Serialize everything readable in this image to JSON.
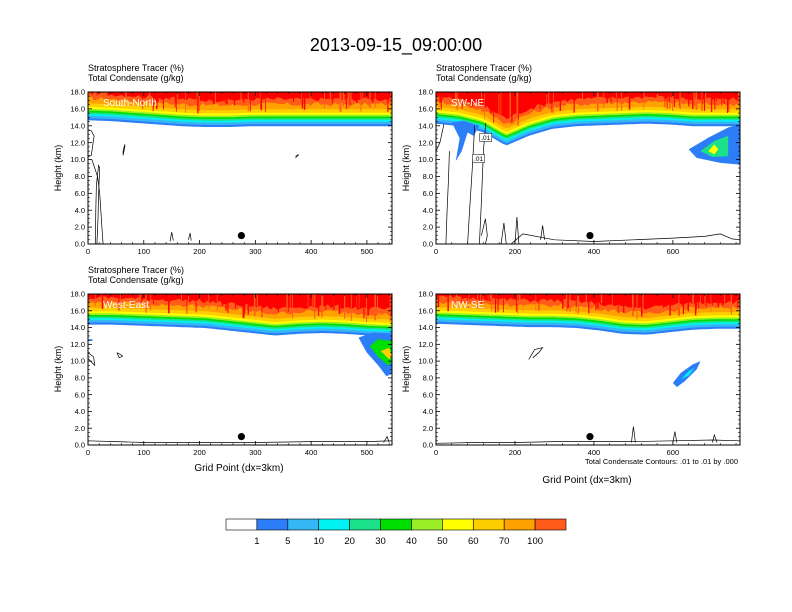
{
  "title": "2013-09-15_09:00:00",
  "colors": {
    "bg": "#ffffff",
    "axis": "#000000",
    "levels": [
      "#ffffff",
      "#2b7ef7",
      "#35b7f6",
      "#00f2f2",
      "#1be18a",
      "#00e000",
      "#99ee28",
      "#ffff00",
      "#ffce00",
      "#ffa200",
      "#ff5c1a",
      "#ff0000"
    ]
  },
  "colorbar": {
    "labels": [
      "1",
      "5",
      "10",
      "20",
      "30",
      "40",
      "50",
      "60",
      "70",
      "100"
    ]
  },
  "note": "Total Condensate Contours: .01 to .01 by .000",
  "x_axis_label": "Grid Point (dx=3km)",
  "chart_data": [
    {
      "type": "heatmap",
      "panel": "South-North",
      "subtitle_line1": "Stratosphere Tracer   (%)",
      "subtitle_line2": "Total Condensate   (g/kg)",
      "ylabel": "Height (km)",
      "ylim": [
        0,
        18
      ],
      "yticks": [
        "0.0",
        "2.0",
        "4.0",
        "6.0",
        "8.0",
        "10.0",
        "12.0",
        "14.0",
        "16.0",
        "18.0"
      ],
      "xlim": [
        0,
        545
      ],
      "xticks": [
        0,
        100,
        200,
        300,
        400,
        500
      ],
      "xlabel": "",
      "tracer_top_km": [
        15.0,
        14.9,
        14.7,
        14.5,
        14.3,
        14.2,
        14.2,
        14.3,
        14.3,
        14.3,
        14.3,
        14.3,
        14.3,
        14.3
      ],
      "features": [
        {
          "kind": "contour",
          "points": [
            [
              0,
              10.3
            ],
            [
              6,
              10.5
            ],
            [
              11,
              12.8
            ],
            [
              6,
              13.4
            ],
            [
              0,
              13.5
            ]
          ]
        },
        {
          "kind": "contour",
          "points": [
            [
              7,
              10
            ],
            [
              12,
              9
            ],
            [
              17,
              8
            ],
            [
              21,
              6
            ],
            [
              23,
              4
            ],
            [
              25,
              2
            ],
            [
              27,
              0
            ]
          ]
        },
        {
          "kind": "contour",
          "points": [
            [
              16,
              0
            ],
            [
              18,
              3
            ],
            [
              19,
              6
            ],
            [
              21,
              9
            ],
            [
              19,
              9.3
            ],
            [
              15,
              7
            ],
            [
              14,
              4
            ],
            [
              13,
              0
            ]
          ]
        },
        {
          "kind": "contour",
          "points": [
            [
              63,
              10.5
            ],
            [
              66,
              11.5
            ],
            [
              66,
              11.8
            ],
            [
              63,
              11
            ],
            [
              63,
              10.5
            ]
          ]
        },
        {
          "kind": "contour",
          "points": [
            [
              147,
              0.3
            ],
            [
              150,
              1.4
            ],
            [
              153,
              0.4
            ]
          ]
        },
        {
          "kind": "contour",
          "points": [
            [
              180,
              0.5
            ],
            [
              183,
              1.3
            ],
            [
              185,
              0.4
            ]
          ]
        },
        {
          "kind": "contour",
          "points": [
            [
              372,
              10.2
            ],
            [
              378,
              10.6
            ],
            [
              372,
              10.4
            ]
          ]
        }
      ],
      "marker": {
        "x": 275,
        "y": 1.0
      }
    },
    {
      "type": "heatmap",
      "panel": "SW-NE",
      "subtitle_line1": "Stratosphere Tracer   (%)",
      "subtitle_line2": "Total Condensate   (g/kg)",
      "ylabel": "Height (km)",
      "ylim": [
        0,
        18
      ],
      "yticks": [
        "0.0",
        "2.0",
        "4.0",
        "6.0",
        "8.0",
        "10.0",
        "12.0",
        "14.0",
        "16.0",
        "18.0"
      ],
      "xlim": [
        0,
        770
      ],
      "xticks": [
        0,
        200,
        400,
        600
      ],
      "xlabel": "",
      "tracer_top_km": [
        14.6,
        14.3,
        13.6,
        12.0,
        13.2,
        14.0,
        14.3,
        14.4,
        14.5,
        14.6,
        14.5,
        14.3,
        14.3,
        14.3
      ],
      "features": [
        {
          "kind": "blob",
          "level": 1,
          "points": [
            [
              640,
              11.2
            ],
            [
              690,
              12.6
            ],
            [
              740,
              13.8
            ],
            [
              770,
              14.2
            ],
            [
              770,
              9.4
            ],
            [
              720,
              9.6
            ],
            [
              660,
              10.2
            ]
          ]
        },
        {
          "kind": "blob",
          "level": 4,
          "points": [
            [
              670,
              11.0
            ],
            [
              705,
              12.2
            ],
            [
              740,
              12.8
            ],
            [
              740,
              10.4
            ],
            [
              700,
              10.3
            ]
          ]
        },
        {
          "kind": "blob",
          "level": 7,
          "points": [
            [
              690,
              11.0
            ],
            [
              705,
              11.8
            ],
            [
              715,
              11.2
            ],
            [
              705,
              10.6
            ]
          ]
        },
        {
          "kind": "blob",
          "level": 1,
          "points": [
            [
              40,
              14.4
            ],
            [
              60,
              12.5
            ],
            [
              50,
              9.8
            ],
            [
              65,
              11.0
            ],
            [
              80,
              13.2
            ],
            [
              95,
              12.8
            ],
            [
              110,
              14.0
            ],
            [
              70,
              14.6
            ]
          ]
        },
        {
          "kind": "contour",
          "points": [
            [
              0,
              11.0
            ],
            [
              10,
              12.0
            ],
            [
              20,
              14.2
            ]
          ]
        },
        {
          "kind": "contour",
          "points": [
            [
              25,
              0
            ],
            [
              28,
              4
            ],
            [
              32,
              8
            ],
            [
              34,
              11
            ]
          ]
        },
        {
          "kind": "contour",
          "points": [
            [
              80,
              0
            ],
            [
              85,
              4
            ],
            [
              92,
              9
            ],
            [
              98,
              14
            ]
          ]
        },
        {
          "kind": "contour",
          "points": [
            [
              110,
              0
            ],
            [
              115,
              5
            ],
            [
              120,
              11
            ],
            [
              126,
              14.3
            ]
          ]
        },
        {
          "kind": "contour",
          "points": [
            [
              115,
              1
            ],
            [
              125,
              3
            ],
            [
              130,
              1
            ],
            [
              125,
              0
            ]
          ]
        },
        {
          "kind": "contour",
          "points": [
            [
              165,
              0
            ],
            [
              172,
              2.5
            ],
            [
              178,
              0
            ]
          ]
        },
        {
          "kind": "contour",
          "points": [
            [
              200,
              0
            ],
            [
              205,
              3.2
            ],
            [
              210,
              0
            ]
          ]
        },
        {
          "kind": "contour",
          "points": [
            [
              265,
              0.5
            ],
            [
              270,
              2.2
            ],
            [
              275,
              0.5
            ]
          ]
        },
        {
          "kind": "contour",
          "points": [
            [
              190,
              0
            ],
            [
              220,
              1.2
            ],
            [
              300,
              0.5
            ],
            [
              400,
              0.3
            ],
            [
              500,
              0.5
            ],
            [
              600,
              0.7
            ],
            [
              680,
              0.9
            ],
            [
              720,
              1.2
            ],
            [
              750,
              0.6
            ],
            [
              770,
              0.5
            ]
          ]
        }
      ],
      "labels": [
        {
          "text": ".01",
          "x": 108,
          "y": 10.0
        },
        {
          "text": ".01",
          "x": 126,
          "y": 12.5
        }
      ],
      "marker": {
        "x": 390,
        "y": 1.0
      }
    },
    {
      "type": "heatmap",
      "panel": "West-East",
      "subtitle_line1": "Stratosphere Tracer   (%)",
      "subtitle_line2": "Total Condensate   (g/kg)",
      "ylabel": "Height (km)",
      "ylim": [
        0,
        18
      ],
      "yticks": [
        "0.0",
        "2.0",
        "4.0",
        "6.0",
        "8.0",
        "10.0",
        "12.0",
        "14.0",
        "16.0",
        "18.0"
      ],
      "xlim": [
        0,
        545
      ],
      "xticks": [
        0,
        100,
        200,
        300,
        400,
        500
      ],
      "xlabel": "Grid Point (dx=3km)",
      "tracer_top_km": [
        14.7,
        14.7,
        14.6,
        14.5,
        14.4,
        14.3,
        14.0,
        13.7,
        13.4,
        13.6,
        13.7,
        13.6,
        13.4,
        13.3
      ],
      "features": [
        {
          "kind": "blob",
          "level": 1,
          "points": [
            [
              485,
              12.8
            ],
            [
              500,
              11.0
            ],
            [
              520,
              9.5
            ],
            [
              535,
              8.2
            ],
            [
              545,
              8.5
            ],
            [
              545,
              13.3
            ],
            [
              510,
              13.4
            ]
          ]
        },
        {
          "kind": "blob",
          "level": 5,
          "points": [
            [
              505,
              11.8
            ],
            [
              520,
              10.5
            ],
            [
              538,
              9.5
            ],
            [
              545,
              9.9
            ],
            [
              545,
              12.4
            ],
            [
              520,
              12.6
            ]
          ]
        },
        {
          "kind": "blob",
          "level": 8,
          "points": [
            [
              525,
              11.2
            ],
            [
              540,
              10.2
            ],
            [
              545,
              10.6
            ],
            [
              540,
              11.6
            ]
          ]
        },
        {
          "kind": "blob",
          "level": 1,
          "points": [
            [
              0,
              12.6
            ],
            [
              8,
              12.6
            ],
            [
              8,
              12.4
            ],
            [
              0,
              12.4
            ]
          ]
        },
        {
          "kind": "contour",
          "points": [
            [
              0,
              11.0
            ],
            [
              10,
              10.5
            ],
            [
              12,
              9.5
            ],
            [
              0,
              10.3
            ]
          ]
        },
        {
          "kind": "contour",
          "points": [
            [
              52,
              11.0
            ],
            [
              58,
              10.8
            ],
            [
              62,
              10.6
            ],
            [
              56,
              10.4
            ],
            [
              52,
              11.0
            ]
          ]
        },
        {
          "kind": "contour",
          "points": [
            [
              0,
              0.5
            ],
            [
              50,
              0.4
            ],
            [
              100,
              0.3
            ],
            [
              200,
              0.3
            ],
            [
              300,
              0.3
            ],
            [
              400,
              0.4
            ],
            [
              500,
              0.4
            ],
            [
              545,
              0.5
            ]
          ]
        },
        {
          "kind": "contour",
          "points": [
            [
              530,
              0.3
            ],
            [
              536,
              1.0
            ],
            [
              540,
              0.3
            ]
          ]
        }
      ],
      "marker": {
        "x": 275,
        "y": 1.0
      }
    },
    {
      "type": "heatmap",
      "panel": "NW-SE",
      "subtitle_line1": "",
      "subtitle_line2": "",
      "ylabel": "Height (km)",
      "ylim": [
        0,
        18
      ],
      "yticks": [
        "0.0",
        "2.0",
        "4.0",
        "6.0",
        "8.0",
        "10.0",
        "12.0",
        "14.0",
        "16.0",
        "18.0"
      ],
      "xlim": [
        0,
        770
      ],
      "xticks": [
        0,
        200,
        400,
        600
      ],
      "xlabel": "Grid Point (dx=3km)",
      "tracer_top_km": [
        14.8,
        14.7,
        14.6,
        14.5,
        14.4,
        14.4,
        14.3,
        14.0,
        13.6,
        13.5,
        13.8,
        14.1,
        14.2,
        14.2
      ],
      "features": [
        {
          "kind": "blob",
          "level": 1,
          "points": [
            [
              600,
              7.4
            ],
            [
              620,
              8.6
            ],
            [
              650,
              9.6
            ],
            [
              670,
              10.0
            ],
            [
              660,
              9.0
            ],
            [
              630,
              7.6
            ],
            [
              610,
              6.9
            ]
          ]
        },
        {
          "kind": "blob",
          "level": 3,
          "points": [
            [
              620,
              7.8
            ],
            [
              640,
              8.8
            ],
            [
              655,
              9.2
            ],
            [
              640,
              8.3
            ]
          ]
        },
        {
          "kind": "contour",
          "points": [
            [
              235,
              10.2
            ],
            [
              250,
              11.4
            ],
            [
              270,
              11.6
            ],
            [
              260,
              11.0
            ],
            [
              245,
              10.4
            ]
          ]
        },
        {
          "kind": "contour",
          "points": [
            [
              0,
              0.2
            ],
            [
              100,
              0.3
            ],
            [
              200,
              0.3
            ],
            [
              300,
              0.4
            ],
            [
              400,
              0.4
            ],
            [
              500,
              0.4
            ],
            [
              600,
              0.5
            ],
            [
              700,
              0.6
            ],
            [
              770,
              0.5
            ]
          ]
        },
        {
          "kind": "contour",
          "points": [
            [
              495,
              0.3
            ],
            [
              500,
              2.2
            ],
            [
              505,
              0.3
            ]
          ]
        },
        {
          "kind": "contour",
          "points": [
            [
              600,
              0.3
            ],
            [
              605,
              1.6
            ],
            [
              610,
              0.3
            ]
          ]
        },
        {
          "kind": "contour",
          "points": [
            [
              700,
              0.3
            ],
            [
              705,
              1.2
            ],
            [
              712,
              0.3
            ]
          ]
        }
      ],
      "marker": {
        "x": 390,
        "y": 1.0
      }
    }
  ]
}
